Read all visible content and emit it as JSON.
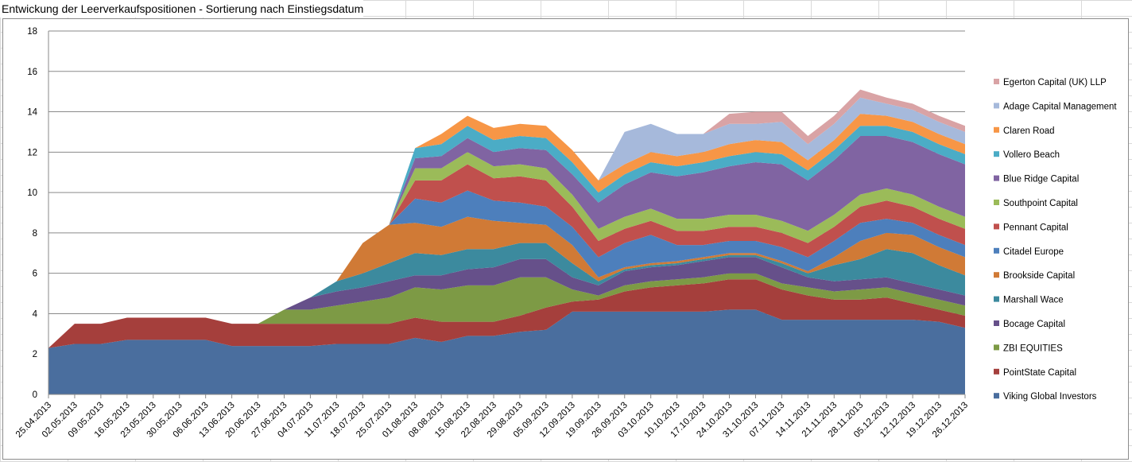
{
  "sheet": {
    "title": "Entwickung der Leerverkaufspositionen - Sortierung nach Einstiegsdatum"
  },
  "chart_data": {
    "type": "area",
    "stacked": true,
    "title": "",
    "xlabel": "",
    "ylabel": "",
    "ylim": [
      0,
      18
    ],
    "yticks": [
      0,
      2,
      4,
      6,
      8,
      10,
      12,
      14,
      16,
      18
    ],
    "grid": "horizontal",
    "legend_position": "right",
    "x": [
      "25.04.2013",
      "02.05.2013",
      "09.05.2013",
      "16.05.2013",
      "23.05.2013",
      "30.05.2013",
      "06.06.2013",
      "13.06.2013",
      "20.06.2013",
      "27.06.2013",
      "04.07.2013",
      "11.07.2013",
      "18.07.2013",
      "25.07.2013",
      "01.08.2013",
      "08.08.2013",
      "15.08.2013",
      "22.08.2013",
      "29.08.2013",
      "05.09.2013",
      "12.09.2013",
      "19.09.2013",
      "26.09.2013",
      "03.10.2013",
      "10.10.2013",
      "17.10.2013",
      "24.10.2013",
      "31.10.2013",
      "07.11.2013",
      "14.11.2013",
      "21.11.2013",
      "28.11.2013",
      "05.12.2013",
      "12.12.2013",
      "19.12.2013",
      "26.12.2013"
    ],
    "series": [
      {
        "name": "Viking Global Investors",
        "color": "#4a6e9e",
        "values": [
          2.3,
          2.5,
          2.5,
          2.7,
          2.7,
          2.7,
          2.7,
          2.4,
          2.4,
          2.4,
          2.4,
          2.5,
          2.5,
          2.5,
          2.8,
          2.6,
          2.9,
          2.9,
          3.1,
          3.2,
          4.1,
          4.1,
          4.1,
          4.1,
          4.1,
          4.1,
          4.2,
          4.2,
          3.7,
          3.7,
          3.7,
          3.7,
          3.7,
          3.7,
          3.6,
          3.3
        ]
      },
      {
        "name": "PointState Capital",
        "color": "#a53f3c",
        "values": [
          0,
          1.0,
          1.0,
          1.1,
          1.1,
          1.1,
          1.1,
          1.1,
          1.1,
          1.1,
          1.1,
          1.0,
          1.0,
          1.0,
          1.0,
          1.0,
          0.7,
          0.7,
          0.8,
          1.1,
          0.5,
          0.6,
          1.0,
          1.2,
          1.3,
          1.4,
          1.5,
          1.5,
          1.5,
          1.2,
          1.0,
          1.0,
          1.1,
          0.8,
          0.6,
          0.6
        ]
      },
      {
        "name": "ZBI EQUITIES",
        "color": "#7d9a45",
        "values": [
          0,
          0,
          0,
          0,
          0,
          0,
          0,
          0,
          0,
          0.7,
          0.7,
          0.9,
          1.1,
          1.3,
          1.5,
          1.6,
          1.8,
          1.8,
          1.9,
          1.5,
          0.6,
          0.2,
          0.3,
          0.3,
          0.3,
          0.3,
          0.3,
          0.3,
          0.3,
          0.4,
          0.4,
          0.5,
          0.5,
          0.5,
          0.5,
          0.5
        ]
      },
      {
        "name": "Bocage Capital",
        "color": "#66508a",
        "values": [
          0,
          0,
          0,
          0,
          0,
          0,
          0,
          0,
          0,
          0,
          0.6,
          0.7,
          0.7,
          0.8,
          0.6,
          0.7,
          0.8,
          0.9,
          0.9,
          0.9,
          0.6,
          0.5,
          0.7,
          0.7,
          0.7,
          0.8,
          0.8,
          0.8,
          0.8,
          0.5,
          0.5,
          0.5,
          0.5,
          0.5,
          0.5,
          0.5
        ]
      },
      {
        "name": "Marshall Wace",
        "color": "#3c8a9e",
        "values": [
          0,
          0,
          0,
          0,
          0,
          0,
          0,
          0,
          0,
          0,
          0,
          0.5,
          0.7,
          0.9,
          1.1,
          1.0,
          1.0,
          0.9,
          0.8,
          0.8,
          0.7,
          0.2,
          0.1,
          0.1,
          0.1,
          0.1,
          0.1,
          0.1,
          0.2,
          0.2,
          0.8,
          1.0,
          1.4,
          1.5,
          1.2,
          1.0
        ]
      },
      {
        "name": "Brookside Capital",
        "color": "#d07a36",
        "values": [
          0,
          0,
          0,
          0,
          0,
          0,
          0,
          0,
          0,
          0,
          0,
          0,
          1.5,
          1.9,
          1.5,
          1.4,
          1.6,
          1.4,
          1.0,
          0.9,
          0.9,
          0.2,
          0.1,
          0.1,
          0.1,
          0.1,
          0.1,
          0.1,
          0.1,
          0.1,
          0.4,
          0.9,
          0.8,
          0.9,
          0.9,
          0.9
        ]
      },
      {
        "name": "Citadel Europe",
        "color": "#4d7fbc",
        "values": [
          0,
          0,
          0,
          0,
          0,
          0,
          0,
          0,
          0,
          0,
          0,
          0,
          0,
          0,
          1.2,
          1.2,
          1.3,
          1.0,
          1.0,
          0.9,
          0.9,
          1.0,
          1.2,
          1.4,
          0.8,
          0.6,
          0.6,
          0.6,
          0.7,
          0.7,
          0.8,
          0.9,
          0.7,
          0.6,
          0.6,
          0.6
        ]
      },
      {
        "name": "Pennant Capital",
        "color": "#c0504d",
        "values": [
          0,
          0,
          0,
          0,
          0,
          0,
          0,
          0,
          0,
          0,
          0,
          0,
          0,
          0,
          0.9,
          1.1,
          1.3,
          1.1,
          1.3,
          1.3,
          1.0,
          0.8,
          0.7,
          0.7,
          0.7,
          0.7,
          0.7,
          0.7,
          0.7,
          0.7,
          0.7,
          0.8,
          0.9,
          0.8,
          0.8,
          0.8
        ]
      },
      {
        "name": "Southpoint Capital",
        "color": "#9bbb59",
        "values": [
          0,
          0,
          0,
          0,
          0,
          0,
          0,
          0,
          0,
          0,
          0,
          0,
          0,
          0,
          0.6,
          0.6,
          0.6,
          0.6,
          0.6,
          0.6,
          0.6,
          0.6,
          0.6,
          0.6,
          0.6,
          0.6,
          0.6,
          0.6,
          0.6,
          0.6,
          0.6,
          0.6,
          0.6,
          0.6,
          0.6,
          0.6
        ]
      },
      {
        "name": "Blue Ridge Capital",
        "color": "#8064a2",
        "values": [
          0,
          0,
          0,
          0,
          0,
          0,
          0,
          0,
          0,
          0,
          0,
          0,
          0,
          0,
          0.5,
          0.6,
          0.7,
          0.7,
          0.8,
          0.9,
          1.0,
          1.3,
          1.6,
          1.8,
          2.1,
          2.3,
          2.4,
          2.6,
          2.8,
          2.5,
          2.7,
          2.9,
          2.6,
          2.6,
          2.6,
          2.6
        ]
      },
      {
        "name": "Vollero Beach",
        "color": "#4bacc6",
        "values": [
          0,
          0,
          0,
          0,
          0,
          0,
          0,
          0,
          0,
          0,
          0,
          0,
          0,
          0,
          0.5,
          0.6,
          0.6,
          0.6,
          0.6,
          0.6,
          0.6,
          0.5,
          0.5,
          0.5,
          0.5,
          0.5,
          0.5,
          0.5,
          0.5,
          0.5,
          0.5,
          0.5,
          0.5,
          0.5,
          0.5,
          0.5
        ]
      },
      {
        "name": "Claren Road",
        "color": "#f79646",
        "values": [
          0,
          0,
          0,
          0,
          0,
          0,
          0,
          0,
          0,
          0,
          0,
          0,
          0,
          0,
          0,
          0.5,
          0.5,
          0.6,
          0.6,
          0.6,
          0.6,
          0.6,
          0.5,
          0.5,
          0.5,
          0.5,
          0.6,
          0.6,
          0.6,
          0.5,
          0.5,
          0.6,
          0.5,
          0.5,
          0.5,
          0.5
        ]
      },
      {
        "name": "Adage Capital  Management",
        "color": "#a6b9db",
        "values": [
          0,
          0,
          0,
          0,
          0,
          0,
          0,
          0,
          0,
          0,
          0,
          0,
          0,
          0,
          0,
          0,
          0,
          0,
          0,
          0,
          0,
          0,
          1.6,
          1.4,
          1.1,
          0.9,
          1.0,
          0.8,
          1.0,
          0.8,
          0.8,
          0.8,
          0.6,
          0.6,
          0.6,
          0.6
        ]
      },
      {
        "name": "Egerton Capital (UK) LLP",
        "color": "#d9a3a5",
        "values": [
          0,
          0,
          0,
          0,
          0,
          0,
          0,
          0,
          0,
          0,
          0,
          0,
          0,
          0,
          0,
          0,
          0,
          0,
          0,
          0,
          0,
          0,
          0,
          0,
          0,
          0,
          0.5,
          0.6,
          0.5,
          0.4,
          0.4,
          0.4,
          0.3,
          0.3,
          0.3,
          0.3
        ]
      }
    ]
  }
}
